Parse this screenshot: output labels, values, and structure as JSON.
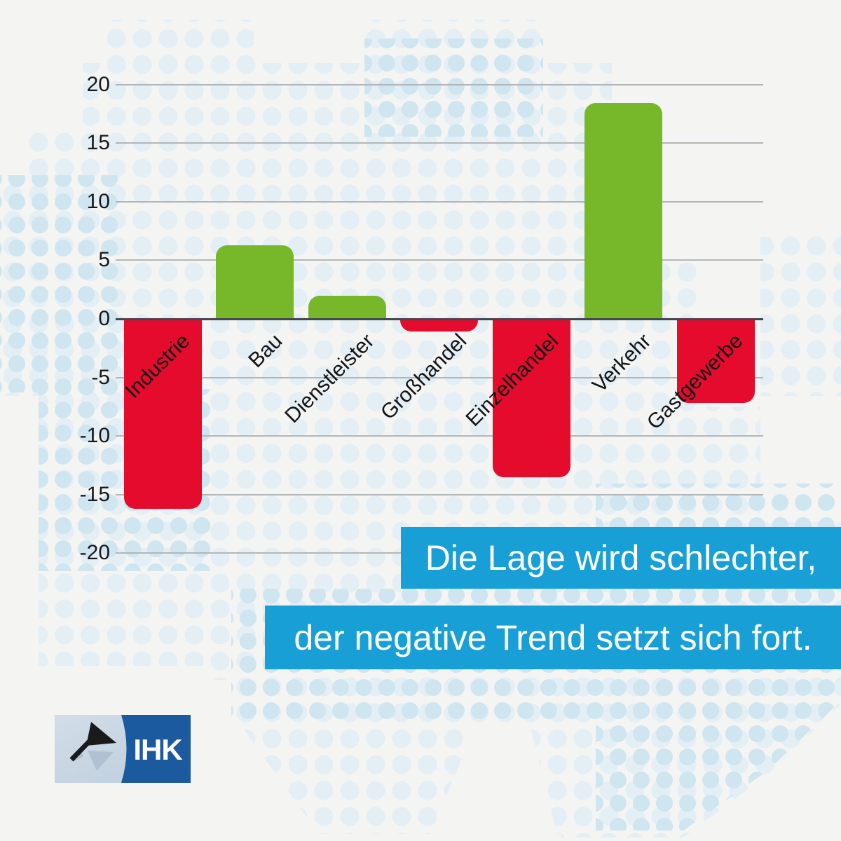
{
  "background": {
    "base_color": "#f4f4f3",
    "dot_color_light": "#e3eef5",
    "dot_color_dark": "#cfe5f0",
    "decoration": "germany-dot-map"
  },
  "chart_data": {
    "type": "bar",
    "categories": [
      "Industrie",
      "Bau",
      "Dienstleister",
      "Großhandel",
      "Einzelhandel",
      "Verkehr",
      "Gastgewerbe"
    ],
    "values": [
      -16.2,
      6.3,
      2.0,
      -1.1,
      -13.5,
      18.4,
      -7.2
    ],
    "yticks": [
      20,
      15,
      10,
      5,
      0,
      -5,
      -10,
      -15,
      -20
    ],
    "ylim": [
      -20,
      20
    ],
    "grid": true,
    "legend": "none",
    "title": "",
    "xlabel": "",
    "ylabel": "",
    "positive_color": "#76b82a",
    "negative_color": "#e40b2d",
    "gridline_color": "#b3b6b9",
    "zeroline_color": "#44484e"
  },
  "banner": {
    "line1": "Die Lage wird schlechter,",
    "line2": "der negative Trend setzt sich fort.",
    "background_color": "#189fd6",
    "text_color": "#ffffff"
  },
  "logo": {
    "text": "IHK",
    "panel_color": "#1b5a9e",
    "plate_color": "#c7d4e1"
  }
}
